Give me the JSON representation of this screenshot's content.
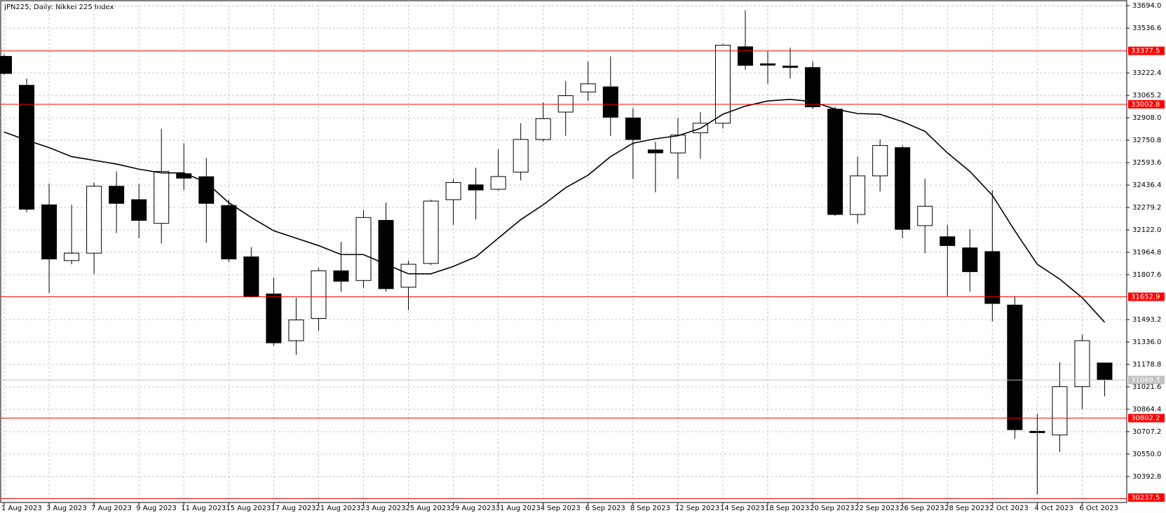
{
  "chart_data": {
    "type": "candlestick",
    "title": "JPN225, Daily:  Nikkei 225 Index",
    "categories": [
      "1 Aug 2023",
      null,
      "3 Aug 2023",
      null,
      "7 Aug 2023",
      null,
      "9 Aug 2023",
      null,
      "11 Aug 2023",
      null,
      "15 Aug 2023",
      null,
      "17 Aug 2023",
      null,
      "21 Aug 2023",
      null,
      "23 Aug 2023",
      null,
      "25 Aug 2023",
      null,
      "29 Aug 2023",
      null,
      "31 Aug 2023",
      null,
      "4 Sep 2023",
      null,
      "6 Sep 2023",
      null,
      "8 Sep 2023",
      null,
      "12 Sep 2023",
      null,
      "14 Sep 2023",
      null,
      "18 Sep 2023",
      null,
      "20 Sep 2023",
      null,
      "22 Sep 2023",
      null,
      "26 Sep 2023",
      null,
      "28 Sep 2023",
      null,
      "2 Oct 2023",
      null,
      "4 Oct 2023",
      null,
      "6 Oct 2023",
      null
    ],
    "open": [
      33339,
      33136,
      32298,
      31907,
      31959,
      32428,
      32334,
      32168,
      32516,
      32495,
      32293,
      31933,
      31673,
      31345,
      31501,
      31835,
      31767,
      32189,
      31720,
      31887,
      32334,
      32438,
      32407,
      32527,
      32756,
      32948,
      33089,
      33125,
      32907,
      32683,
      32662,
      32803,
      32870,
      33406,
      33287,
      33271,
      33261,
      32969,
      32230,
      32501,
      32699,
      32152,
      32074,
      31996,
      31970,
      31595,
      30710,
      30684,
      31023,
      31189
    ],
    "high": [
      33354,
      33183,
      32444,
      32298,
      32454,
      32532,
      32444,
      32829,
      32730,
      32626,
      32334,
      32001,
      31788,
      31647,
      31855,
      32038,
      32261,
      32313,
      31907,
      32334,
      32480,
      32558,
      32688,
      32870,
      33016,
      33167,
      33302,
      33339,
      32975,
      32740,
      32907,
      32948,
      33427,
      33662,
      33375,
      33401,
      33302,
      32985,
      32636,
      32756,
      32714,
      32480,
      32157,
      32126,
      32402,
      31658,
      30830,
      31194,
      31387,
      31189
    ],
    "low": [
      33209,
      32246,
      31678,
      31881,
      31814,
      32100,
      32064,
      32027,
      32402,
      32032,
      31897,
      31647,
      31309,
      31246,
      31413,
      31689,
      31715,
      31689,
      31559,
      31876,
      32157,
      32194,
      32397,
      32469,
      32740,
      32782,
      33026,
      32782,
      32480,
      32386,
      32480,
      32620,
      32834,
      33245,
      33146,
      33183,
      32969,
      32220,
      32168,
      32391,
      32064,
      31959,
      31658,
      31689,
      31481,
      30658,
      30268,
      30564,
      30866,
      30955
    ],
    "close": [
      33219,
      32267,
      31918,
      31959,
      32428,
      32308,
      32189,
      32532,
      32485,
      32308,
      31918,
      31658,
      31330,
      31491,
      31835,
      31762,
      32209,
      31710,
      31881,
      32324,
      32454,
      32402,
      32496,
      32756,
      32902,
      33063,
      33146,
      32912,
      32756,
      32662,
      32787,
      32870,
      33417,
      33276,
      33282,
      33266,
      32985,
      32230,
      32501,
      32714,
      32126,
      32288,
      32012,
      31829,
      31606,
      30721,
      30705,
      31023,
      31345,
      31069.3
    ],
    "up_color": "#ffffff",
    "down_color": "#000000",
    "ma": [
      32808,
      32751,
      32699,
      32636,
      32610,
      32584,
      32548,
      32522,
      32522,
      32454,
      32313,
      32209,
      32116,
      32064,
      32012,
      31949,
      31949,
      31881,
      31814,
      31814,
      31866,
      31933,
      32064,
      32194,
      32298,
      32418,
      32506,
      32636,
      32730,
      32761,
      32782,
      32834,
      32933,
      32990,
      33026,
      33037,
      33021,
      32969,
      32938,
      32933,
      32881,
      32813,
      32662,
      32532,
      32365,
      32116,
      31881,
      31777,
      31647,
      31475
    ],
    "ma_color": "#000000",
    "levels": [
      33377.5,
      33002.8,
      31652.9,
      30802.2,
      30237.5
    ],
    "level_color": "#ff0000",
    "last_price": 31069.3,
    "last_color": "#c0c0c0",
    "ylim": [
      30210.6,
      33729.2
    ],
    "yticks": [
      {
        "value": 33694.0,
        "label": "33694.0"
      },
      33536.6,
      33222.4,
      33065.2,
      {
        "value": 32908.0,
        "label": "32908.0"
      },
      32750.8,
      32593.6,
      32436.4,
      32279.2,
      {
        "value": 32122.0,
        "label": "32122.0"
      },
      31964.8,
      31807.6,
      31493.2,
      {
        "value": 31336.0,
        "label": "31336.0"
      },
      31178.8,
      31021.6,
      30864.4,
      30707.2,
      {
        "value": 30550.0,
        "label": "30550.0"
      },
      30392.8
    ],
    "grid": true
  }
}
